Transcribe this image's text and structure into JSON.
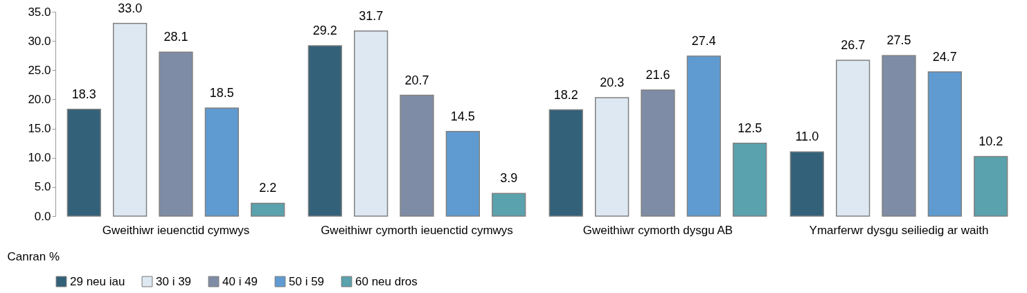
{
  "chart_data": {
    "type": "bar",
    "ylabel": "Canran %",
    "categories": [
      "Gweithiwr ieuenctid cymwys",
      "Gweithiwr cymorth ieuenctid cymwys",
      "Gweithiwr cymorth dysgu AB",
      "Ymarferwr dysgu seiliedig ar waith"
    ],
    "series": [
      {
        "name": "29 neu iau",
        "color": "#336179",
        "values": [
          18.3,
          29.2,
          18.2,
          11.0
        ],
        "value_labels": [
          "18.3",
          "29.2",
          "18.2",
          "11.0"
        ]
      },
      {
        "name": "30 i 39",
        "color": "#dde8f3",
        "values": [
          33.0,
          31.7,
          20.3,
          26.7
        ],
        "value_labels": [
          "33.0",
          "31.7",
          "20.3",
          "26.7"
        ]
      },
      {
        "name": "40 i 49",
        "color": "#7f8ca6",
        "values": [
          28.1,
          20.7,
          21.6,
          27.5
        ],
        "value_labels": [
          "28.1",
          "20.7",
          "21.6",
          "27.5"
        ]
      },
      {
        "name": "50 i 59",
        "color": "#5f9bd1",
        "values": [
          18.5,
          14.5,
          27.4,
          24.7
        ],
        "value_labels": [
          "18.5",
          "14.5",
          "27.4",
          "24.7"
        ]
      },
      {
        "name": "60 neu dros",
        "color": "#5aa2ad",
        "values": [
          2.2,
          3.9,
          12.5,
          10.2
        ],
        "value_labels": [
          "2.2",
          "3.9",
          "12.5",
          "10.2"
        ]
      }
    ],
    "ylim": [
      0,
      35
    ],
    "yticks": [
      {
        "value": 0,
        "label": "0.0"
      },
      {
        "value": 5,
        "label": "5.0"
      },
      {
        "value": 10,
        "label": "10.0"
      },
      {
        "value": 15,
        "label": "15.0"
      },
      {
        "value": 20,
        "label": "20.0"
      },
      {
        "value": 25,
        "label": "25.0"
      },
      {
        "value": 30,
        "label": "30.0"
      },
      {
        "value": 35,
        "label": "35.0"
      }
    ],
    "legend": "bottom"
  }
}
